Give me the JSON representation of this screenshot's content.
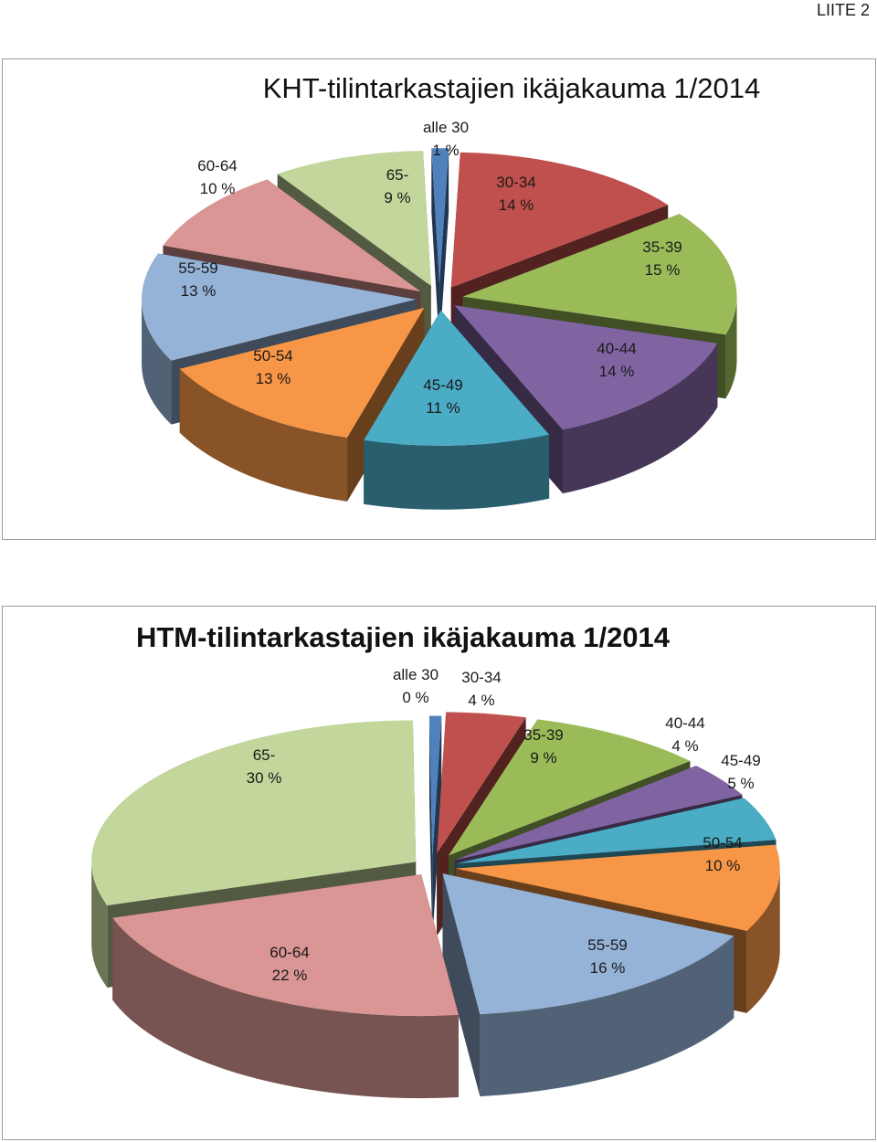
{
  "page": {
    "label": "LIITE 2"
  },
  "chart_data": [
    {
      "type": "pie",
      "title": "KHT-tilintarkastajien ikäjakauma 1/2014",
      "slices": [
        {
          "label": "alle 30",
          "value": 1,
          "value_text": "1 %",
          "color": "#4f81bd"
        },
        {
          "label": "30-34",
          "value": 14,
          "value_text": "14 %",
          "color": "#c0504d"
        },
        {
          "label": "35-39",
          "value": 15,
          "value_text": "15 %",
          "color": "#9bbb59"
        },
        {
          "label": "40-44",
          "value": 14,
          "value_text": "14 %",
          "color": "#8064a2"
        },
        {
          "label": "45-49",
          "value": 11,
          "value_text": "11 %",
          "color": "#4bacc6"
        },
        {
          "label": "50-54",
          "value": 13,
          "value_text": "13 %",
          "color": "#f79646"
        },
        {
          "label": "55-59",
          "value": 13,
          "value_text": "13 %",
          "color": "#95b3d7"
        },
        {
          "label": "60-64",
          "value": 10,
          "value_text": "10 %",
          "color": "#d99694"
        },
        {
          "label": "65-",
          "value": 9,
          "value_text": "9 %",
          "color": "#c3d69b"
        }
      ]
    },
    {
      "type": "pie",
      "title": "HTM-tilintarkastajien ikäjakauma 1/2014",
      "slices": [
        {
          "label": "alle 30",
          "value": 0,
          "value_text": "0 %",
          "color": "#4f81bd"
        },
        {
          "label": "30-34",
          "value": 4,
          "value_text": "4 %",
          "color": "#c0504d"
        },
        {
          "label": "35-39",
          "value": 9,
          "value_text": "9 %",
          "color": "#9bbb59"
        },
        {
          "label": "40-44",
          "value": 4,
          "value_text": "4 %",
          "color": "#8064a2"
        },
        {
          "label": "45-49",
          "value": 5,
          "value_text": "5 %",
          "color": "#4bacc6"
        },
        {
          "label": "50-54",
          "value": 10,
          "value_text": "10 %",
          "color": "#f79646"
        },
        {
          "label": "55-59",
          "value": 16,
          "value_text": "16 %",
          "color": "#95b3d7"
        },
        {
          "label": "60-64",
          "value": 22,
          "value_text": "22 %",
          "color": "#d99694"
        },
        {
          "label": "65-",
          "value": 30,
          "value_text": "30 %",
          "color": "#c3d69b"
        }
      ]
    }
  ]
}
